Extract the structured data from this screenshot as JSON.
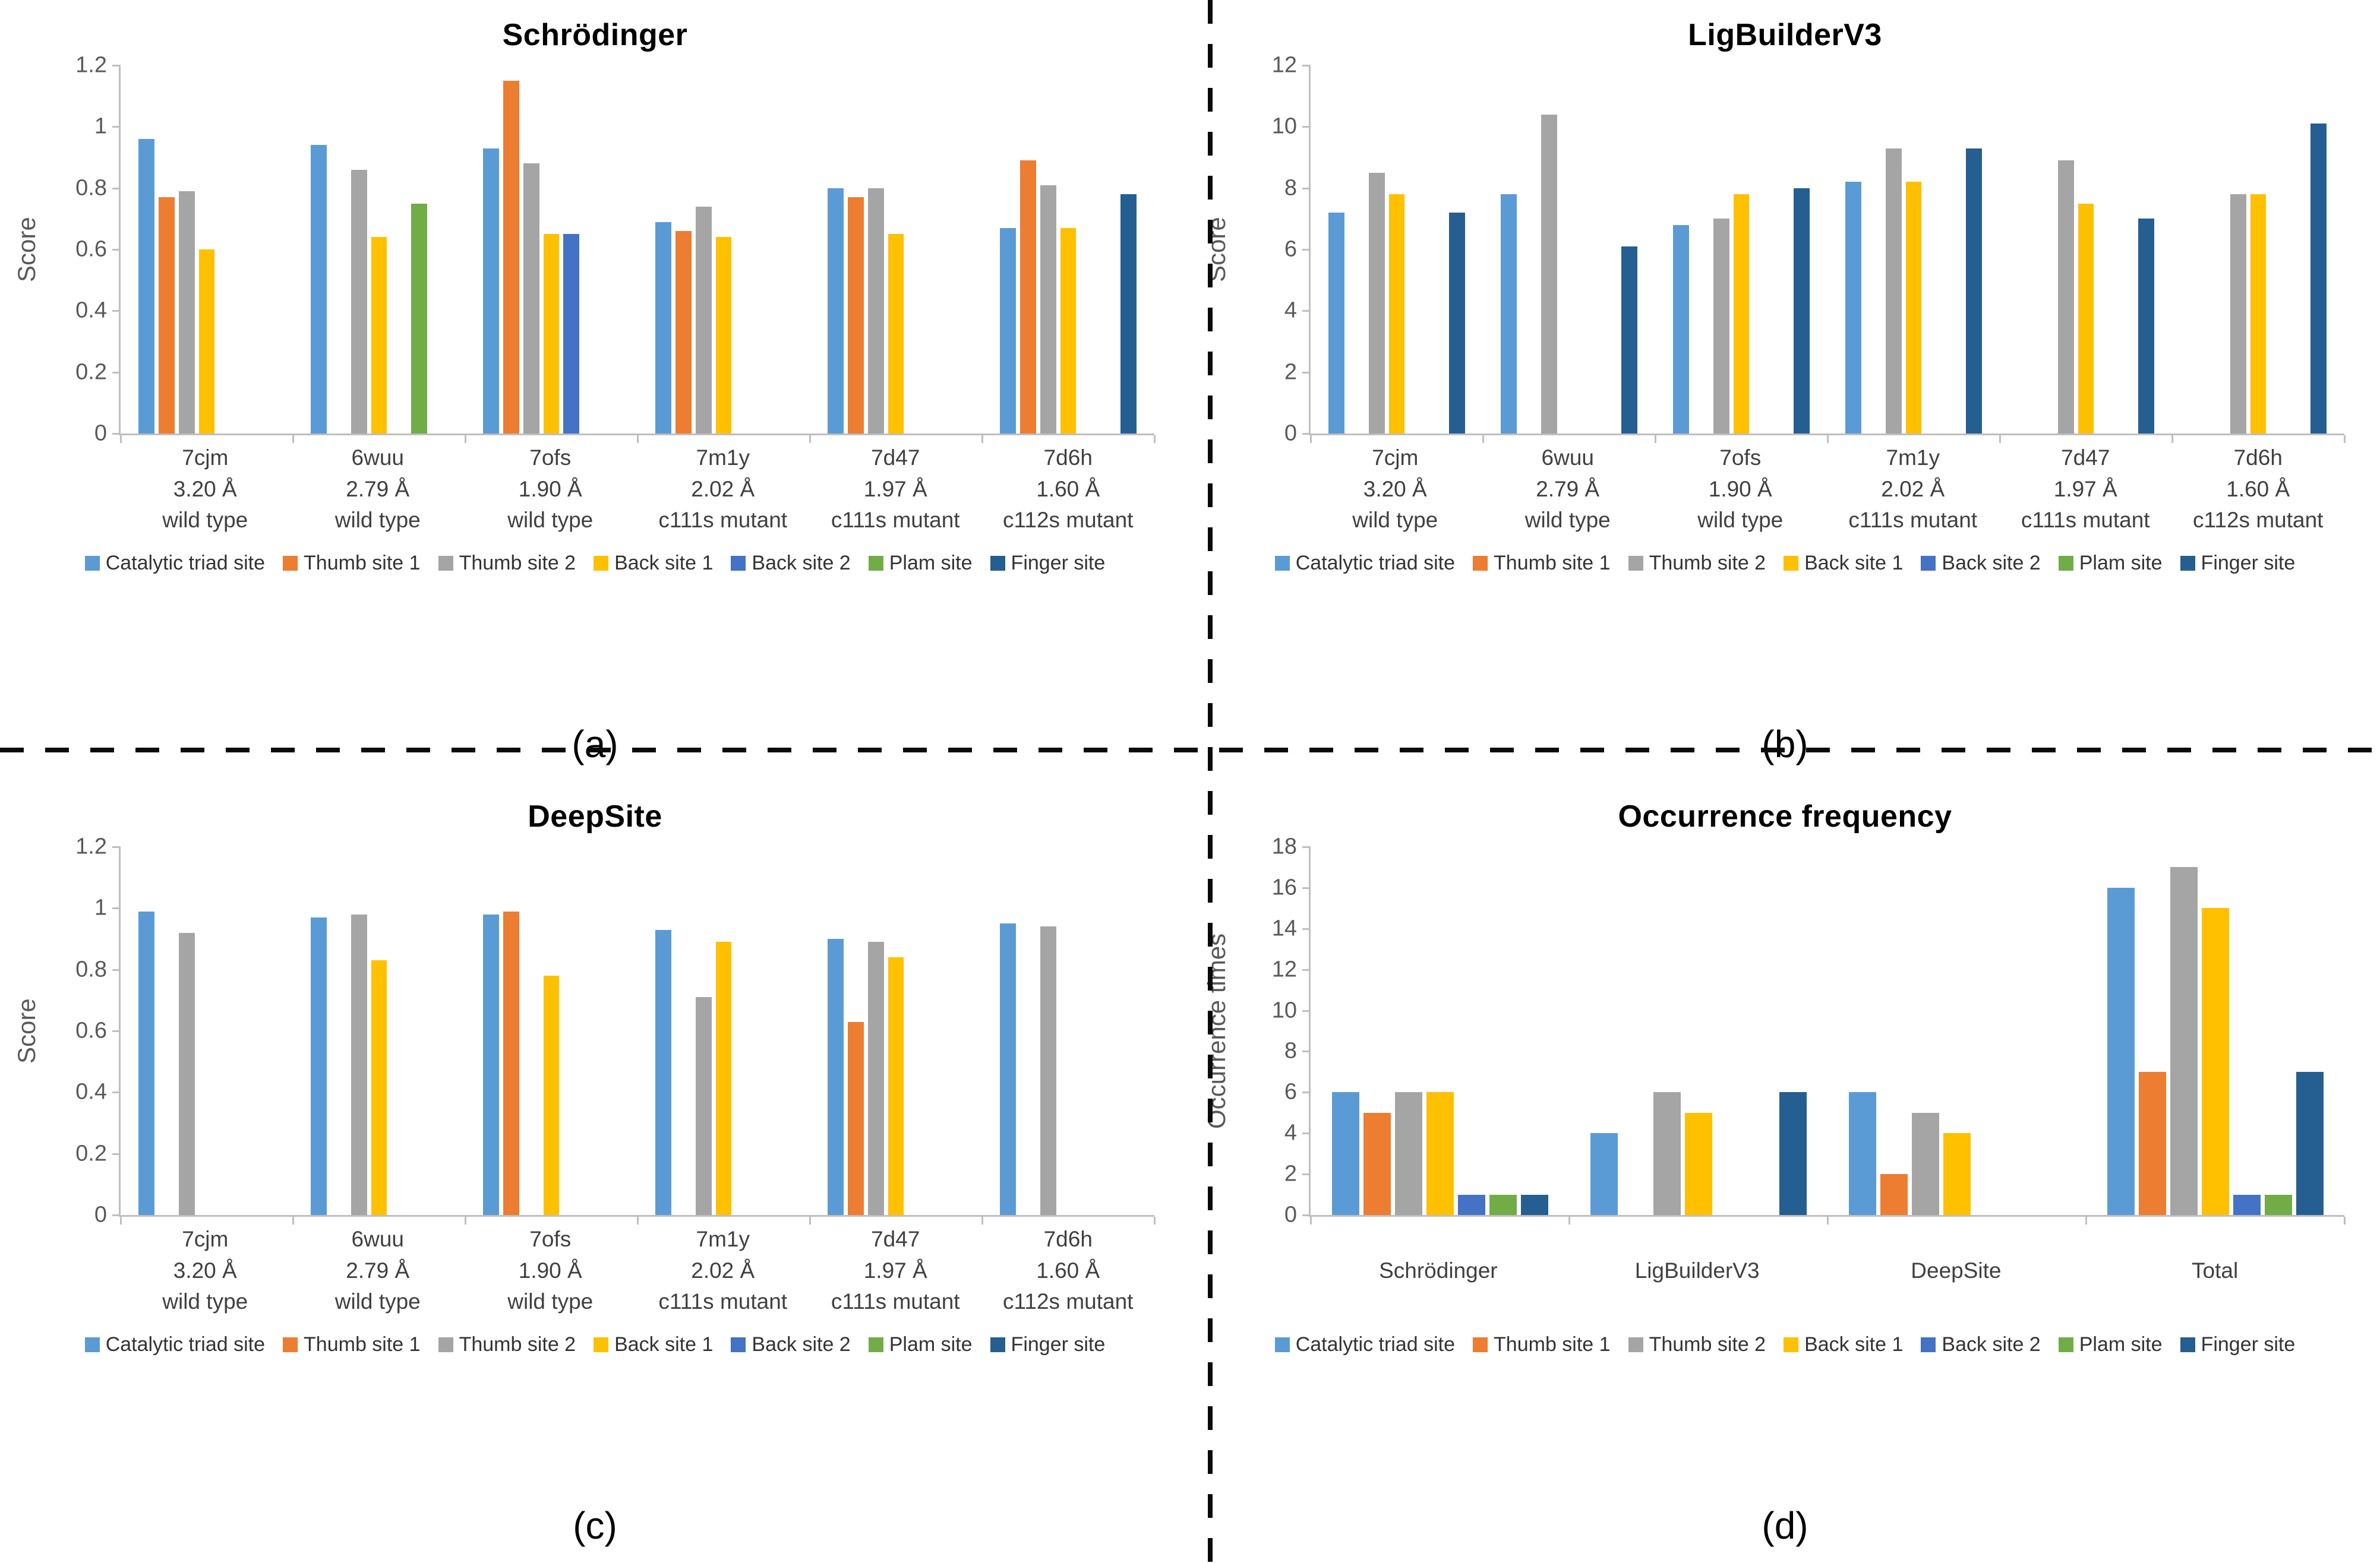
{
  "figure": {
    "background": "#ffffff",
    "axis_color": "#BFBFBF",
    "axis_text_color": "#595959",
    "divider_style": "dashed-black-cross"
  },
  "legend": {
    "entries": [
      {
        "label": "Catalytic triad site",
        "color": "#5B9BD5"
      },
      {
        "label": "Thumb site 1",
        "color": "#ED7D31"
      },
      {
        "label": "Thumb site 2",
        "color": "#A5A5A5"
      },
      {
        "label": "Back site 1",
        "color": "#FFC000"
      },
      {
        "label": "Back site 2",
        "color": "#4472C4"
      },
      {
        "label": "Plam site",
        "color": "#70AD47"
      },
      {
        "label": "Finger site",
        "color": "#255E91"
      }
    ]
  },
  "chart_data": [
    {
      "type": "bar",
      "title": "Schrödinger",
      "panel_label": "(a)",
      "ylabel": "Score",
      "ylim": [
        0,
        1.2
      ],
      "yticks": [
        "1.2",
        "1",
        "0.8",
        "0.6",
        "0.4",
        "0.2",
        "0"
      ],
      "categories": [
        [
          "7cjm",
          "3.20 Å",
          "wild type"
        ],
        [
          "6wuu",
          "2.79 Å",
          "wild type"
        ],
        [
          "7ofs",
          "1.90 Å",
          "wild type"
        ],
        [
          "7m1y",
          "2.02 Å",
          "c111s mutant"
        ],
        [
          "7d47",
          "1.97 Å",
          "c111s mutant"
        ],
        [
          "7d6h",
          "1.60 Å",
          "c112s mutant"
        ]
      ],
      "series": [
        {
          "name": "Catalytic triad site",
          "color": "#5B9BD5",
          "values": [
            0.96,
            0.94,
            0.93,
            0.69,
            0.8,
            0.67
          ]
        },
        {
          "name": "Thumb site 1",
          "color": "#ED7D31",
          "values": [
            0.77,
            null,
            1.15,
            0.66,
            0.77,
            0.89
          ]
        },
        {
          "name": "Thumb site 2",
          "color": "#A5A5A5",
          "values": [
            0.79,
            0.86,
            0.88,
            0.74,
            0.8,
            0.81
          ]
        },
        {
          "name": "Back site 1",
          "color": "#FFC000",
          "values": [
            0.6,
            0.64,
            0.65,
            0.64,
            0.65,
            0.67
          ]
        },
        {
          "name": "Back site 2",
          "color": "#4472C4",
          "values": [
            null,
            null,
            0.65,
            null,
            null,
            null
          ]
        },
        {
          "name": "Plam site",
          "color": "#70AD47",
          "values": [
            null,
            0.75,
            null,
            null,
            null,
            null
          ]
        },
        {
          "name": "Finger site",
          "color": "#255E91",
          "values": [
            null,
            null,
            null,
            null,
            null,
            0.78
          ]
        }
      ]
    },
    {
      "type": "bar",
      "title": "LigBuilderV3",
      "panel_label": "(b)",
      "ylabel": "Score",
      "ylim": [
        0,
        12
      ],
      "yticks": [
        "12",
        "10",
        "8",
        "6",
        "4",
        "2",
        "0"
      ],
      "categories": [
        [
          "7cjm",
          "3.20 Å",
          "wild type"
        ],
        [
          "6wuu",
          "2.79 Å",
          "wild type"
        ],
        [
          "7ofs",
          "1.90 Å",
          "wild type"
        ],
        [
          "7m1y",
          "2.02 Å",
          "c111s mutant"
        ],
        [
          "7d47",
          "1.97 Å",
          "c111s mutant"
        ],
        [
          "7d6h",
          "1.60 Å",
          "c112s mutant"
        ]
      ],
      "series": [
        {
          "name": "Catalytic triad site",
          "color": "#5B9BD5",
          "values": [
            7.2,
            7.8,
            6.8,
            8.2,
            null,
            null
          ]
        },
        {
          "name": "Thumb site 1",
          "color": "#ED7D31",
          "values": [
            null,
            null,
            null,
            null,
            null,
            null
          ]
        },
        {
          "name": "Thumb site 2",
          "color": "#A5A5A5",
          "values": [
            8.5,
            10.4,
            7.0,
            9.3,
            8.9,
            7.8
          ]
        },
        {
          "name": "Back site 1",
          "color": "#FFC000",
          "values": [
            7.8,
            null,
            7.8,
            8.2,
            7.5,
            7.8
          ]
        },
        {
          "name": "Back site 2",
          "color": "#4472C4",
          "values": [
            null,
            null,
            null,
            null,
            null,
            null
          ]
        },
        {
          "name": "Plam site",
          "color": "#70AD47",
          "values": [
            null,
            null,
            null,
            null,
            null,
            null
          ]
        },
        {
          "name": "Finger site",
          "color": "#255E91",
          "values": [
            7.2,
            6.1,
            8.0,
            9.3,
            7.0,
            10.1
          ]
        }
      ]
    },
    {
      "type": "bar",
      "title": "DeepSite",
      "panel_label": "(c)",
      "ylabel": "Score",
      "ylim": [
        0,
        1.2
      ],
      "yticks": [
        "1.2",
        "1",
        "0.8",
        "0.6",
        "0.4",
        "0.2",
        "0"
      ],
      "categories": [
        [
          "7cjm",
          "3.20 Å",
          "wild type"
        ],
        [
          "6wuu",
          "2.79 Å",
          "wild type"
        ],
        [
          "7ofs",
          "1.90 Å",
          "wild type"
        ],
        [
          "7m1y",
          "2.02 Å",
          "c111s mutant"
        ],
        [
          "7d47",
          "1.97 Å",
          "c111s mutant"
        ],
        [
          "7d6h",
          "1.60 Å",
          "c112s mutant"
        ]
      ],
      "series": [
        {
          "name": "Catalytic triad site",
          "color": "#5B9BD5",
          "values": [
            0.99,
            0.97,
            0.98,
            0.93,
            0.9,
            0.95
          ]
        },
        {
          "name": "Thumb site 1",
          "color": "#ED7D31",
          "values": [
            null,
            null,
            0.99,
            null,
            0.63,
            null
          ]
        },
        {
          "name": "Thumb site 2",
          "color": "#A5A5A5",
          "values": [
            0.92,
            0.98,
            null,
            0.71,
            0.89,
            0.94
          ]
        },
        {
          "name": "Back site 1",
          "color": "#FFC000",
          "values": [
            null,
            0.83,
            0.78,
            0.89,
            0.84,
            null
          ]
        },
        {
          "name": "Back site 2",
          "color": "#4472C4",
          "values": [
            null,
            null,
            null,
            null,
            null,
            null
          ]
        },
        {
          "name": "Plam site",
          "color": "#70AD47",
          "values": [
            null,
            null,
            null,
            null,
            null,
            null
          ]
        },
        {
          "name": "Finger site",
          "color": "#255E91",
          "values": [
            null,
            null,
            null,
            null,
            null,
            null
          ]
        }
      ]
    },
    {
      "type": "bar",
      "title": "Occurrence frequency",
      "panel_label": "(d)",
      "ylabel": "Occurrence times",
      "ylim": [
        0,
        18
      ],
      "yticks": [
        "18",
        "16",
        "14",
        "12",
        "10",
        "8",
        "6",
        "4",
        "2",
        "0"
      ],
      "categories": [
        [
          "Schrödinger"
        ],
        [
          "LigBuilderV3"
        ],
        [
          "DeepSite"
        ],
        [
          "Total"
        ]
      ],
      "series": [
        {
          "name": "Catalytic triad site",
          "color": "#5B9BD5",
          "values": [
            6,
            4,
            6,
            16
          ]
        },
        {
          "name": "Thumb site 1",
          "color": "#ED7D31",
          "values": [
            5,
            null,
            2,
            7
          ]
        },
        {
          "name": "Thumb site 2",
          "color": "#A5A5A5",
          "values": [
            6,
            6,
            5,
            17
          ]
        },
        {
          "name": "Back site 1",
          "color": "#FFC000",
          "values": [
            6,
            5,
            4,
            15
          ]
        },
        {
          "name": "Back site 2",
          "color": "#4472C4",
          "values": [
            1,
            null,
            null,
            1
          ]
        },
        {
          "name": "Plam site",
          "color": "#70AD47",
          "values": [
            1,
            null,
            null,
            1
          ]
        },
        {
          "name": "Finger site",
          "color": "#255E91",
          "values": [
            1,
            6,
            null,
            7
          ]
        }
      ]
    }
  ]
}
